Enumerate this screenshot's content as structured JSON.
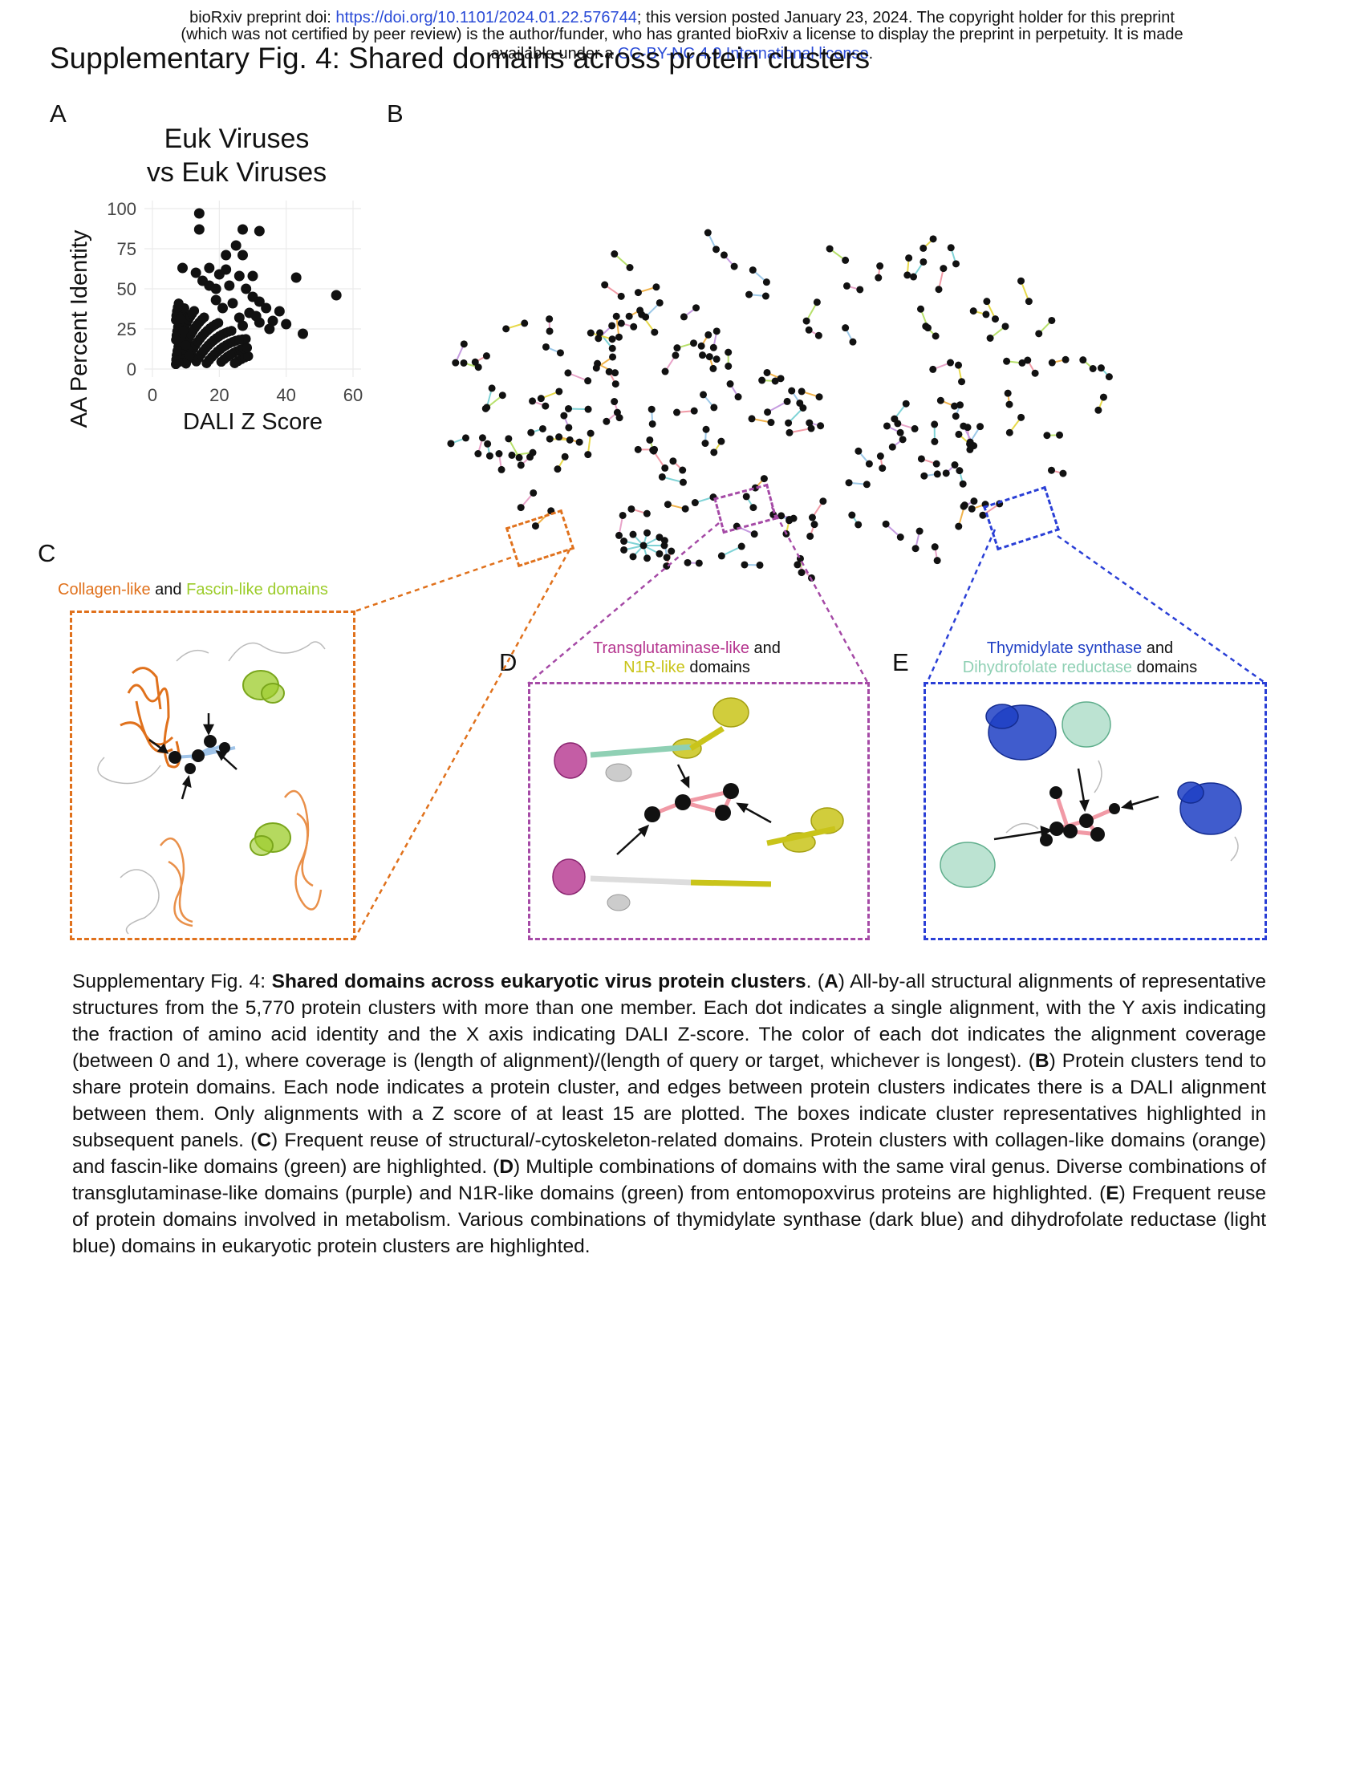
{
  "header": {
    "line1_prefix": "bioRxiv preprint doi: ",
    "doi_link": "https://doi.org/10.1101/2024.01.22.576744",
    "line1_suffix": "; this version posted January 23, 2024. The copyright holder for this preprint",
    "line2": "(which was not certified by peer review) is the author/funder, who has granted bioRxiv a license to display the preprint in perpetuity. It is made",
    "line3_prefix": "available under a",
    "license_link": "CC-BY-NC 4.0 International license",
    "line3_suffix": "."
  },
  "figure_title": "Supplementary Fig. 4: Shared domains across protein clusters",
  "panels": {
    "a": {
      "letter": "A"
    },
    "b": {
      "letter": "B"
    },
    "c": {
      "letter": "C",
      "title_part1": "Collagen-like",
      "title_and": " and ",
      "title_part2": "Fascin-like domains"
    },
    "d": {
      "letter": "D",
      "title_part1": "Transglutaminase-like",
      "title_and": " and",
      "title_part2": "N1R-like",
      "title_end": " domains"
    },
    "e": {
      "letter": "E",
      "title_part1": "Thymidylate synthase",
      "title_and": " and",
      "title_part2": "Dihydrofolate reductase",
      "title_end": " domains"
    }
  },
  "colors": {
    "collagen": "#e0711c",
    "fascin": "#9ccc2a",
    "transglutaminase": "#b5358f",
    "n1r": "#c9c41a",
    "thymidylate": "#1f3fc4",
    "dhfr": "#8fd0b4",
    "box_c": "#e0711c",
    "box_d": "#a54aa6",
    "box_e": "#2a3fd6"
  },
  "chart_data": {
    "type": "scatter",
    "title": "Euk Viruses\nvs Euk Viruses",
    "title_line1": "Euk Viruses",
    "title_line2": "vs Euk Viruses",
    "xlabel": "DALI Z Score",
    "ylabel": "AA Percent Identity",
    "xlim": [
      0,
      60
    ],
    "ylim": [
      0,
      100
    ],
    "xticks": [
      0,
      20,
      40,
      60
    ],
    "yticks": [
      0,
      25,
      50,
      75,
      100
    ],
    "grid": true,
    "points": [
      [
        14,
        97
      ],
      [
        14,
        87
      ],
      [
        27,
        87
      ],
      [
        32,
        86
      ],
      [
        25,
        77
      ],
      [
        22,
        71
      ],
      [
        27,
        71
      ],
      [
        9,
        63
      ],
      [
        17,
        63
      ],
      [
        22,
        62
      ],
      [
        13,
        60
      ],
      [
        20,
        59
      ],
      [
        26,
        58
      ],
      [
        30,
        58
      ],
      [
        43,
        57
      ],
      [
        55,
        46
      ],
      [
        30,
        45
      ],
      [
        34,
        38
      ],
      [
        38,
        36
      ],
      [
        15,
        55
      ],
      [
        17,
        52
      ],
      [
        19,
        50
      ],
      [
        23,
        52
      ],
      [
        28,
        50
      ],
      [
        32,
        42
      ],
      [
        36,
        30
      ],
      [
        35,
        25
      ],
      [
        40,
        28
      ],
      [
        45,
        22
      ],
      [
        32,
        29
      ],
      [
        27,
        27
      ],
      [
        21,
        38
      ],
      [
        24,
        41
      ],
      [
        29,
        35
      ],
      [
        19,
        43
      ],
      [
        26,
        32
      ],
      [
        31,
        33
      ]
    ]
  },
  "caption": {
    "label": "Supplementary Fig. 4: ",
    "title": "Shared domains across eukaryotic virus protein clusters",
    "t1": ". (",
    "A": "A",
    "t2": ") All-by-all structural alignments of representative structures from the 5,770 protein clusters with more than one member. Each dot indicates a single alignment, with the Y axis indicating the fraction of amino acid identity and the X axis indicating DALI Z-score. The color of each dot indicates the alignment coverage (between 0 and 1), where coverage is (length of alignment)/(length of query or target, whichever is longest). (",
    "B": "B",
    "t3": ") Protein clusters tend to share protein domains. Each node indicates a protein cluster, and edges between protein clusters indicates there is a DALI alignment between them. Only alignments with a Z score of at least 15 are plotted. The boxes indicate cluster representatives highlighted in subsequent panels. (",
    "C": "C",
    "t4": ") Frequent reuse of structural/-cytoskeleton-related domains. Protein clusters with collagen-like domains (orange) and fascin-like domains (green) are highlighted. (",
    "D": "D",
    "t5": ") Multiple combinations of domains with the same viral genus. Diverse combinations of transglutaminase-like domains (purple) and N1R-like domains (green) from entomopoxvirus proteins are highlighted. (",
    "E": "E",
    "t6": ") Frequent reuse of protein domains involved in metabolism. Various combinations of thymidylate synthase (dark blue) and dihydrofolate reductase (light blue) domains in eukaryotic protein clusters are highlighted."
  }
}
